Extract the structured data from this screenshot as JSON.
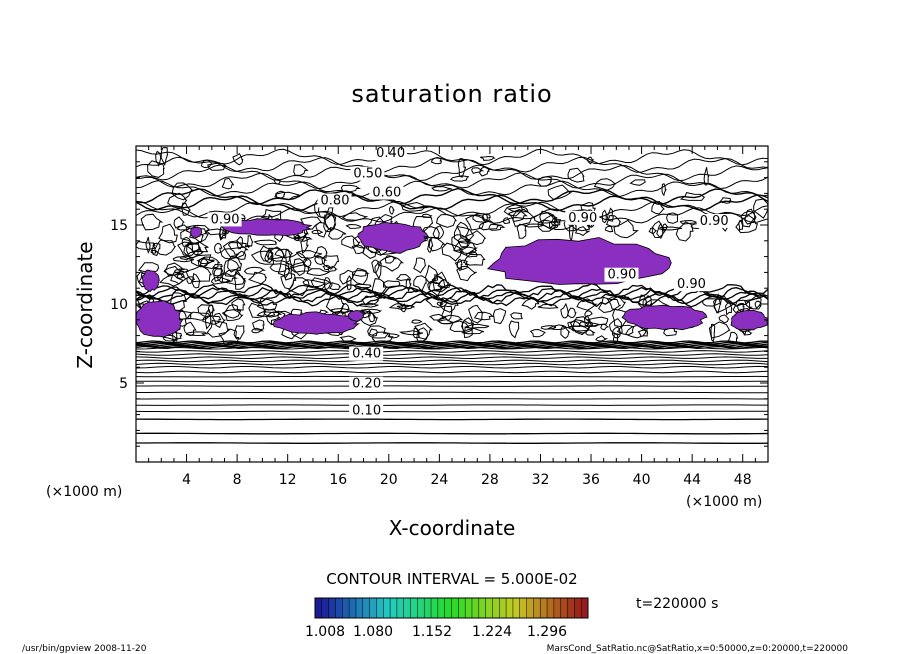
{
  "chart_data": {
    "type": "contour",
    "title": "saturation ratio",
    "xlabel": "X-coordinate",
    "ylabel": "Z-coordinate",
    "x_unit": "(×1000 m)",
    "y_unit": "(×1000 m)",
    "xlim": [
      0,
      50
    ],
    "ylim": [
      0,
      20
    ],
    "xticks": [
      4,
      8,
      12,
      16,
      20,
      24,
      28,
      32,
      36,
      40,
      44,
      48
    ],
    "yticks": [
      5,
      10,
      15
    ],
    "contour_interval_text": "CONTOUR INTERVAL = 5.000E-02",
    "time_text": "t=220000 s",
    "colorbar_ticks": [
      "1.008",
      "1.080",
      "1.152",
      "1.224",
      "1.296"
    ],
    "shade_color": "#8a2fbf",
    "contour_labels": [
      {
        "text": "0.40",
        "x": 19.0,
        "y": 19.3
      },
      {
        "text": "0.50",
        "x": 17.2,
        "y": 18.0
      },
      {
        "text": "0.60",
        "x": 18.7,
        "y": 16.8
      },
      {
        "text": "0.80",
        "x": 14.6,
        "y": 16.3
      },
      {
        "text": "0.90",
        "x": 5.9,
        "y": 15.1
      },
      {
        "text": "0.90",
        "x": 34.2,
        "y": 15.2
      },
      {
        "text": "0.90",
        "x": 44.6,
        "y": 15.0
      },
      {
        "text": "0.90",
        "x": 37.3,
        "y": 11.6
      },
      {
        "text": "0.90",
        "x": 42.8,
        "y": 11.0
      },
      {
        "text": "0.40",
        "x": 17.1,
        "y": 6.6
      },
      {
        "text": "0.20",
        "x": 17.1,
        "y": 4.7
      },
      {
        "text": "0.10",
        "x": 17.1,
        "y": 3.0
      }
    ],
    "horizontal_levels_low": [
      1.2,
      1.8,
      2.7,
      3.2,
      3.6,
      4.0,
      4.4,
      4.8,
      5.1,
      5.4,
      5.7,
      6.0,
      6.2,
      6.4,
      6.6,
      6.8,
      7.0,
      7.2
    ],
    "shaded_regions": [
      {
        "x": [
          0.0,
          3.6
        ],
        "y": [
          7.8,
          10.2
        ]
      },
      {
        "x": [
          0.5,
          1.8
        ],
        "y": [
          10.8,
          12.2
        ]
      },
      {
        "x": [
          4.3,
          5.2
        ],
        "y": [
          14.2,
          14.9
        ]
      },
      {
        "x": [
          7.0,
          13.8
        ],
        "y": [
          14.3,
          15.4
        ]
      },
      {
        "x": [
          11.0,
          17.5
        ],
        "y": [
          8.0,
          9.5
        ]
      },
      {
        "x": [
          16.8,
          18.0
        ],
        "y": [
          8.9,
          9.6
        ]
      },
      {
        "x": [
          17.5,
          23.0
        ],
        "y": [
          13.2,
          15.3
        ]
      },
      {
        "x": [
          28.0,
          42.0
        ],
        "y": [
          11.0,
          14.2
        ]
      },
      {
        "x": [
          38.5,
          45.0
        ],
        "y": [
          8.3,
          10.0
        ]
      },
      {
        "x": [
          47.0,
          50.0
        ],
        "y": [
          8.3,
          9.6
        ]
      }
    ]
  },
  "footer": {
    "left": "/usr/bin/gpview  2008-11-20",
    "right": "MarsCond_SatRatio.nc@SatRatio,x=0:50000,z=0:20000,t=220000"
  }
}
